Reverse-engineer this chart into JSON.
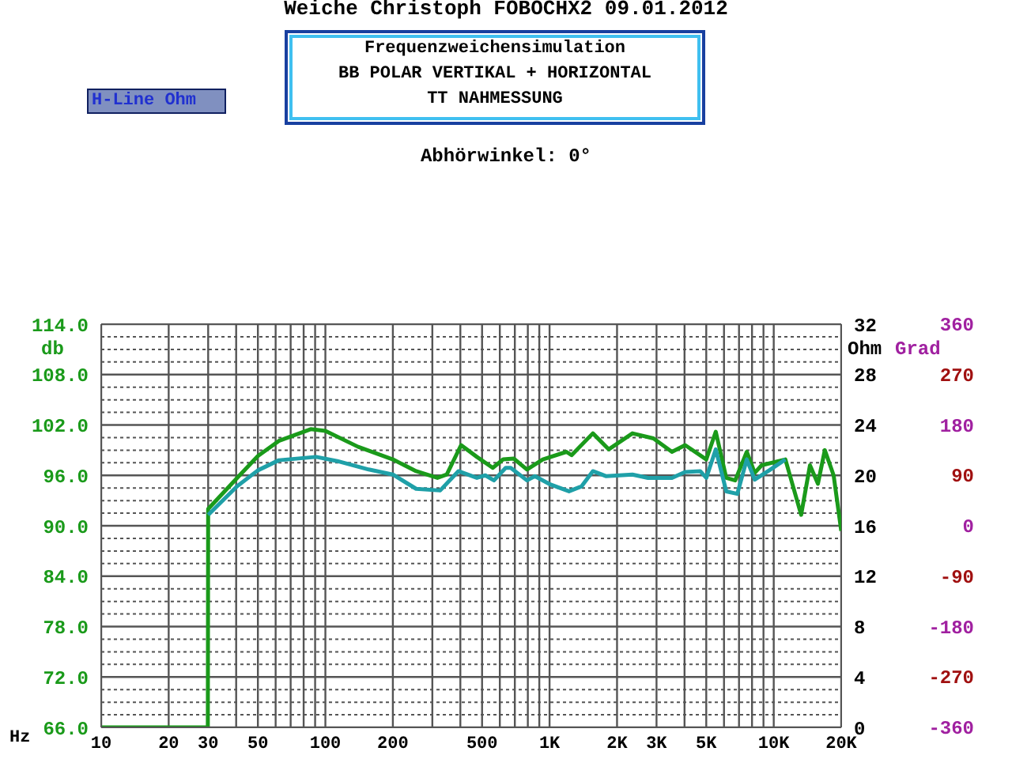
{
  "chart_data": {
    "type": "line",
    "title": "Weiche Christoph   FOBOCHX2 09.01.2012",
    "subtitle": "Frequenzweichensimulation",
    "annotations": [
      "BB POLAR VERTIKAL + HORIZONTAL",
      "TT NAHMESSUNG",
      "Abhörwinkel: 0°",
      "H-Line Ohm"
    ],
    "xlabel": "Hz",
    "ylabel": "db",
    "y2label": "Ohm",
    "y3label": "Grad",
    "log": "x",
    "grid": true,
    "legend": false,
    "marker": "none",
    "line_style": "solid",
    "xlim": [
      10,
      20000
    ],
    "xticks": [
      10,
      20,
      30,
      {
        "value": 40,
        "label": null
      },
      50,
      {
        "value": 60,
        "label": null
      },
      {
        "value": 70,
        "label": null
      },
      {
        "value": 80,
        "label": null
      },
      {
        "value": 90,
        "label": null
      },
      100,
      200,
      {
        "value": 300,
        "label": null
      },
      {
        "value": 400,
        "label": null
      },
      500,
      {
        "value": 600,
        "label": null
      },
      {
        "value": 700,
        "label": null
      },
      {
        "value": 800,
        "label": null
      },
      {
        "value": 900,
        "label": null
      },
      {
        "value": 1000,
        "label": "1K"
      },
      {
        "value": 2000,
        "label": "2K"
      },
      {
        "value": 3000,
        "label": "3K"
      },
      {
        "value": 4000,
        "label": null
      },
      {
        "value": 5000,
        "label": "5K"
      },
      {
        "value": 6000,
        "label": null
      },
      {
        "value": 7000,
        "label": null
      },
      {
        "value": 8000,
        "label": null
      },
      {
        "value": 9000,
        "label": null
      },
      {
        "value": 10000,
        "label": "10K"
      },
      {
        "value": 20000,
        "label": "20K"
      }
    ],
    "ylim": [
      66,
      114
    ],
    "yticks": [
      {
        "value": 66,
        "label": "66.0"
      },
      {
        "value": 67.5,
        "label": null
      },
      {
        "value": 69,
        "label": null
      },
      {
        "value": 70.5,
        "label": null
      },
      {
        "value": 72,
        "label": "72.0"
      },
      {
        "value": 73.5,
        "label": null
      },
      {
        "value": 75,
        "label": null
      },
      {
        "value": 76.5,
        "label": null
      },
      {
        "value": 78,
        "label": "78.0"
      },
      {
        "value": 79.5,
        "label": null
      },
      {
        "value": 81,
        "label": null
      },
      {
        "value": 82.5,
        "label": null
      },
      {
        "value": 84,
        "label": "84.0"
      },
      {
        "value": 85.5,
        "label": null
      },
      {
        "value": 87,
        "label": null
      },
      {
        "value": 88.5,
        "label": null
      },
      {
        "value": 90,
        "label": "90.0"
      },
      {
        "value": 91.5,
        "label": null
      },
      {
        "value": 93,
        "label": null
      },
      {
        "value": 94.5,
        "label": null
      },
      {
        "value": 96,
        "label": "96.0"
      },
      {
        "value": 97.5,
        "label": null
      },
      {
        "value": 99,
        "label": null
      },
      {
        "value": 100.5,
        "label": null
      },
      {
        "value": 102,
        "label": "102.0"
      },
      {
        "value": 103.5,
        "label": null
      },
      {
        "value": 105,
        "label": null
      },
      {
        "value": 106.5,
        "label": null
      },
      {
        "value": 108,
        "label": "108.0"
      },
      {
        "value": 109.5,
        "label": null
      },
      {
        "value": 111,
        "label": null
      },
      {
        "value": 112.5,
        "label": null
      },
      {
        "value": 114,
        "label": "114.0"
      }
    ],
    "y2lim": [
      0,
      32
    ],
    "y2ticks": [
      0,
      4,
      8,
      12,
      16,
      20,
      24,
      28,
      32
    ],
    "y3lim": [
      -360,
      360
    ],
    "y3ticks": [
      -360,
      -270,
      -180,
      -90,
      0,
      90,
      180,
      270,
      360
    ],
    "series": [
      {
        "color": "#1a9a1a",
        "x": [
          10,
          29.9,
          30,
          40.4,
          50,
          62,
          86,
          100,
          140,
          200,
          254,
          316,
          348,
          403,
          474,
          558,
          621,
          692,
          793,
          933,
          1189,
          1254,
          1560,
          1835,
          2343,
          2906,
          3515,
          4025,
          5003,
          5513,
          6140,
          6730,
          7580,
          8225,
          8830,
          11270,
          13250,
          14510,
          15740,
          16900,
          18500,
          20000
        ],
        "values": [
          66,
          66,
          92.0,
          95.7,
          98.3,
          100.1,
          101.5,
          101.3,
          99.4,
          97.9,
          96.5,
          95.7,
          96.1,
          99.6,
          98.2,
          96.9,
          97.9,
          98.0,
          96.7,
          97.9,
          98.8,
          98.4,
          101.0,
          99.1,
          101.0,
          100.4,
          98.8,
          99.6,
          97.9,
          101.2,
          95.7,
          95.4,
          98.8,
          96.3,
          97.2,
          97.9,
          91.3,
          97.2,
          95.0,
          99.0,
          96.0,
          89.4
        ]
      },
      {
        "color": "#1fa0a8",
        "x": [
          30,
          40.4,
          50,
          62,
          91,
          113,
          156,
          200,
          254,
          325,
          392,
          474,
          517,
          565,
          637,
          671,
          793,
          860,
          1011,
          1221,
          1390,
          1560,
          1790,
          2343,
          2750,
          3515,
          4025,
          4700,
          5003,
          5513,
          6140,
          6880,
          7580,
          8225,
          9550,
          11270
        ],
        "values": [
          91.3,
          94.7,
          96.6,
          97.8,
          98.2,
          97.7,
          96.7,
          96.1,
          94.4,
          94.2,
          96.5,
          95.7,
          96.0,
          95.4,
          96.9,
          96.9,
          95.4,
          95.9,
          94.9,
          94.1,
          94.7,
          96.5,
          95.9,
          96.1,
          95.7,
          95.7,
          96.4,
          96.5,
          95.7,
          99.1,
          94.1,
          93.8,
          97.9,
          95.5,
          96.6,
          97.9
        ]
      }
    ]
  }
}
